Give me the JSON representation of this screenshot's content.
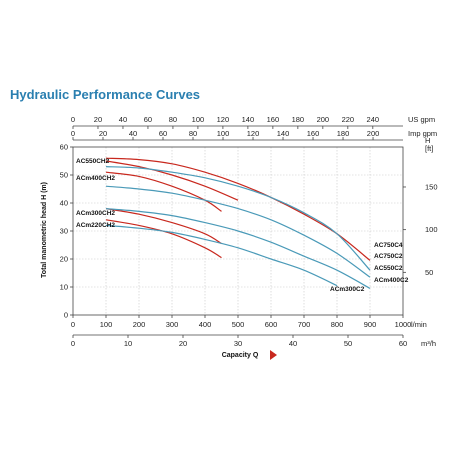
{
  "chart_data": {
    "type": "line",
    "title": "Hydraulic Performance Curves",
    "xlabel": "Capacity Q",
    "ylabel": "Total manometric head H (m)",
    "x_unit": "l/min",
    "y_unit_left": "m",
    "y_unit_right": "H [ft]",
    "xlim": [
      0,
      1000
    ],
    "ylim": [
      0,
      60
    ],
    "grid": true,
    "x_ticks": [
      "0",
      "100",
      "200",
      "300",
      "400",
      "500",
      "600",
      "700",
      "800",
      "900",
      "1000"
    ],
    "y_ticks": [
      "0",
      "10",
      "20",
      "30",
      "40",
      "50",
      "60"
    ],
    "secondary_axes": {
      "us_gpm": {
        "unit": "US gpm",
        "ticks": [
          "0",
          "20",
          "40",
          "60",
          "80",
          "100",
          "120",
          "140",
          "160",
          "180",
          "200",
          "220",
          "240"
        ]
      },
      "imp_gpm": {
        "unit": "Imp gpm",
        "ticks": [
          "0",
          "20",
          "40",
          "60",
          "80",
          "100",
          "120",
          "140",
          "160",
          "180",
          "200"
        ]
      },
      "m3h": {
        "unit": "m³/h",
        "ticks": [
          "0",
          "10",
          "20",
          "30",
          "40",
          "50",
          "60"
        ]
      },
      "ft": {
        "unit": "H [ft]",
        "ticks": [
          "50",
          "100",
          "150"
        ]
      }
    },
    "colors": {
      "red": "#c8281e",
      "blue": "#4a9ab8",
      "title": "#2a7fb0"
    },
    "series": [
      {
        "name": "AC550CH2",
        "color": "red",
        "x": [
          100,
          200,
          300,
          400,
          500
        ],
        "y": [
          55,
          53,
          50,
          46,
          41
        ]
      },
      {
        "name": "ACm400CH2",
        "color": "red",
        "x": [
          100,
          200,
          300,
          400,
          450
        ],
        "y": [
          51,
          49.5,
          46,
          41,
          37
        ]
      },
      {
        "name": "ACm300CH2",
        "color": "red",
        "x": [
          100,
          200,
          300,
          400,
          450
        ],
        "y": [
          38,
          36,
          33,
          29,
          25.5
        ]
      },
      {
        "name": "ACm220CH2",
        "color": "red",
        "x": [
          100,
          200,
          300,
          400,
          450
        ],
        "y": [
          34,
          32,
          29,
          24,
          20.5
        ]
      },
      {
        "name": "AC750C4",
        "color": "red",
        "x": [
          100,
          200,
          300,
          400,
          500,
          600,
          700,
          800,
          900
        ],
        "y": [
          56,
          55.5,
          54,
          51,
          47,
          42,
          36,
          29,
          19.5
        ]
      },
      {
        "name": "AC750C2",
        "color": "blue",
        "x": [
          100,
          200,
          300,
          400,
          500,
          600,
          700,
          800,
          900
        ],
        "y": [
          53,
          52.5,
          51,
          49,
          46,
          42,
          36.5,
          29,
          16
        ]
      },
      {
        "name": "AC550C2",
        "color": "blue",
        "x": [
          100,
          200,
          300,
          400,
          500,
          600,
          700,
          800,
          900
        ],
        "y": [
          46,
          45,
          43.5,
          41,
          38,
          34,
          28.5,
          22,
          13.5
        ]
      },
      {
        "name": "ACm400C2",
        "color": "blue",
        "x": [
          100,
          200,
          300,
          400,
          500,
          600,
          700,
          800,
          900
        ],
        "y": [
          38,
          37,
          35.5,
          33,
          30,
          26,
          21,
          16,
          9.5
        ]
      },
      {
        "name": "ACm300C2",
        "color": "blue",
        "x": [
          100,
          200,
          300,
          400,
          500,
          600,
          700,
          800
        ],
        "y": [
          32,
          31,
          29.5,
          27,
          24,
          20,
          16,
          10.5
        ]
      }
    ]
  }
}
